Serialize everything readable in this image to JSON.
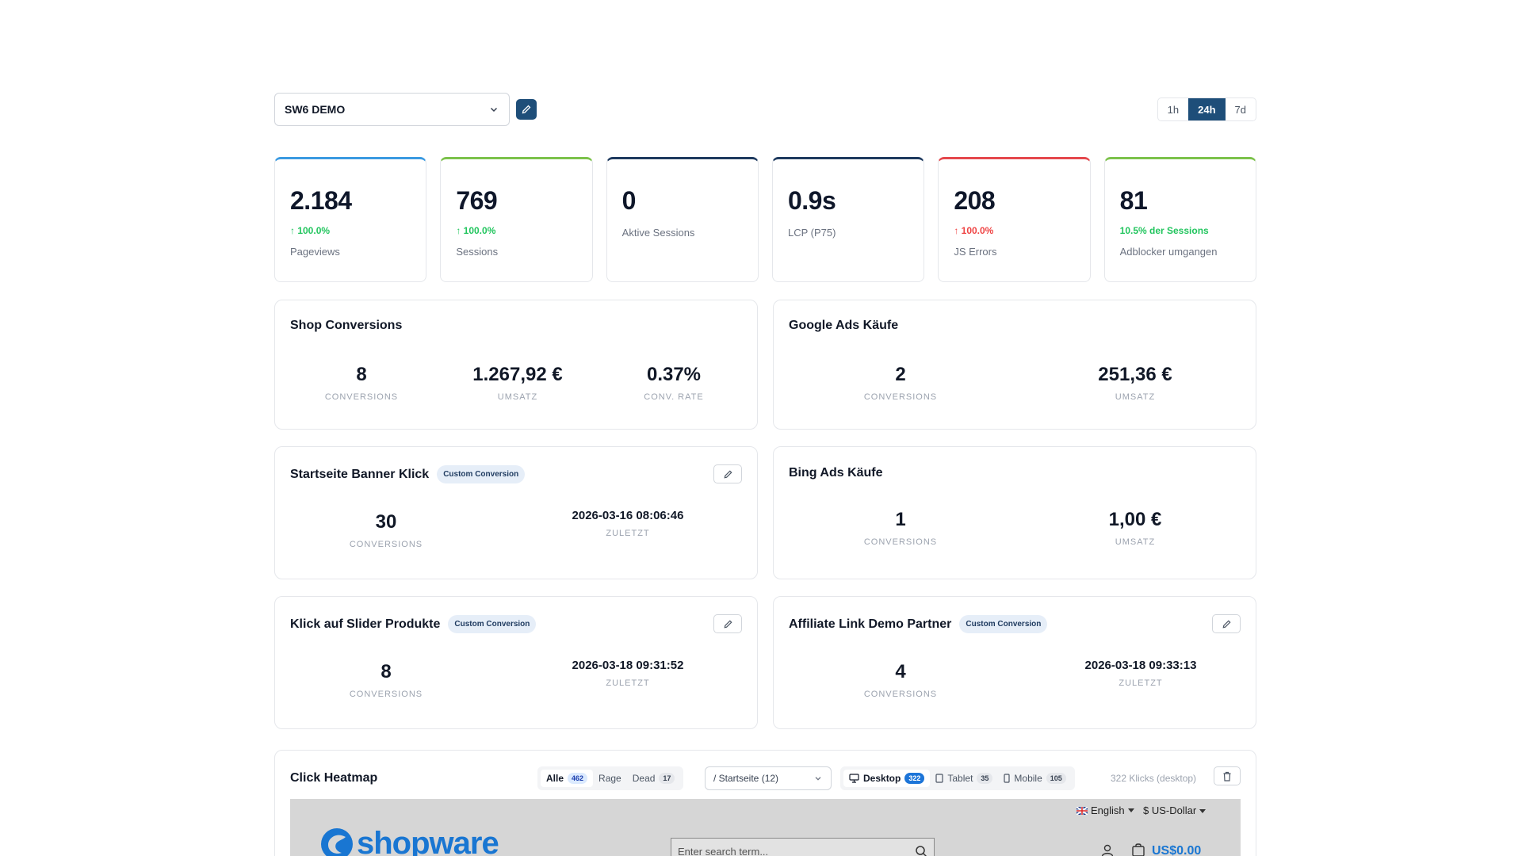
{
  "shop_select": {
    "value": "SW6 DEMO"
  },
  "time_range": {
    "options": [
      "1h",
      "24h",
      "7d"
    ],
    "active": "24h"
  },
  "kpis": [
    {
      "value": "2.184",
      "delta": "↑ 100.0%",
      "delta_color": "green",
      "label": "Pageviews",
      "accent": "#3b9ae1"
    },
    {
      "value": "769",
      "delta": "↑ 100.0%",
      "delta_color": "green",
      "label": "Sessions",
      "accent": "#7cc24b"
    },
    {
      "value": "0",
      "delta": "",
      "label": "Aktive Sessions",
      "accent": "#1e3a5f"
    },
    {
      "value": "0.9s",
      "delta": "",
      "label": "LCP (P75)",
      "accent": "#1e3a5f"
    },
    {
      "value": "208",
      "delta": "↑ 100.0%",
      "delta_color": "red",
      "label": "JS Errors",
      "accent": "#e5484d"
    },
    {
      "value": "81",
      "delta": "10.5% der Sessions",
      "delta_color": "green",
      "label": "Adblocker umgangen",
      "accent": "#7cc24b"
    }
  ],
  "shop_conversions": {
    "title": "Shop Conversions",
    "metrics": [
      {
        "value": "8",
        "label": "CONVERSIONS"
      },
      {
        "value": "1.267,92 €",
        "label": "UMSATZ"
      },
      {
        "value": "0.37%",
        "label": "CONV. RATE"
      }
    ]
  },
  "google_ads": {
    "title": "Google Ads Käufe",
    "metrics": [
      {
        "value": "2",
        "label": "CONVERSIONS"
      },
      {
        "value": "251,36 €",
        "label": "UMSATZ"
      }
    ]
  },
  "banner_klick": {
    "title": "Startseite Banner Klick",
    "badge": "Custom Conversion",
    "metrics": [
      {
        "value": "30",
        "label": "CONVERSIONS"
      },
      {
        "value": "2026-03-16 08:06:46",
        "label": "ZULETZT"
      }
    ]
  },
  "bing_ads": {
    "title": "Bing Ads Käufe",
    "metrics": [
      {
        "value": "1",
        "label": "CONVERSIONS"
      },
      {
        "value": "1,00 €",
        "label": "UMSATZ"
      }
    ]
  },
  "slider_klick": {
    "title": "Klick auf Slider Produkte",
    "badge": "Custom Conversion",
    "metrics": [
      {
        "value": "8",
        "label": "CONVERSIONS"
      },
      {
        "value": "2026-03-18 09:31:52",
        "label": "ZULETZT"
      }
    ]
  },
  "affiliate": {
    "title": "Affiliate Link Demo Partner",
    "badge": "Custom Conversion",
    "metrics": [
      {
        "value": "4",
        "label": "CONVERSIONS"
      },
      {
        "value": "2026-03-18 09:33:13",
        "label": "ZULETZT"
      }
    ]
  },
  "heatmap": {
    "title": "Click Heatmap",
    "types": [
      {
        "label": "Alle",
        "count": "462"
      },
      {
        "label": "Rage",
        "count": ""
      },
      {
        "label": "Dead",
        "count": "17"
      }
    ],
    "page": "/ Startseite (12)",
    "devices": [
      {
        "label": "Desktop",
        "count": "322"
      },
      {
        "label": "Tablet",
        "count": "35"
      },
      {
        "label": "Mobile",
        "count": "105"
      }
    ],
    "clicks_info": "322 Klicks (desktop)",
    "preview": {
      "language": "English",
      "currency": "$ US-Dollar",
      "logo": "shopware",
      "search_placeholder": "Enter search term...",
      "cart_total": "US$0.00"
    }
  }
}
